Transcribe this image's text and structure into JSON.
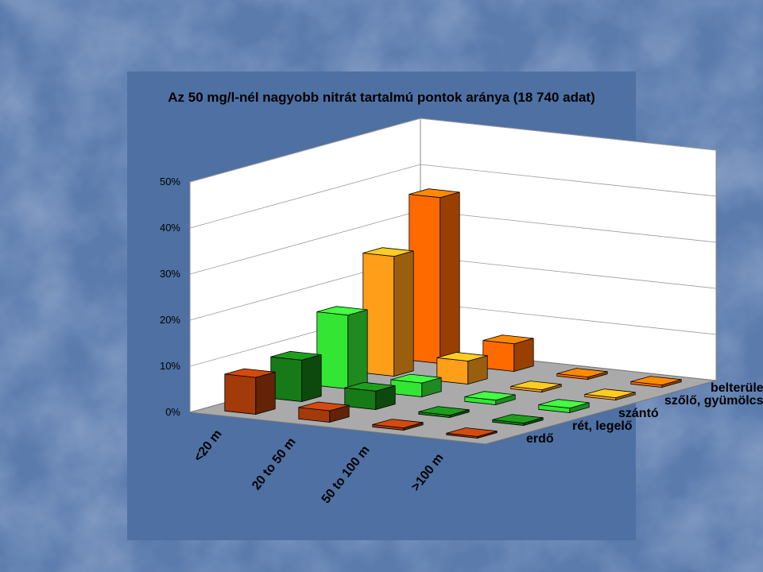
{
  "chart_data": {
    "type": "bar3d",
    "title": "Az 50 mg/l-nél nagyobb nitrát tartalmú pontok aránya (18 740 adat)",
    "categories": [
      "<20 m",
      "20 to 50 m",
      "50 to 100 m",
      ">100 m"
    ],
    "series": [
      {
        "name": "erdő",
        "color": "#a33a0a",
        "values": [
          8,
          2.5,
          0.5,
          0.3
        ]
      },
      {
        "name": "rét, legelő",
        "color": "#167a16",
        "values": [
          9,
          4,
          0.5,
          0.5
        ]
      },
      {
        "name": "szántó",
        "color": "#33e633",
        "values": [
          16,
          3,
          1,
          1
        ]
      },
      {
        "name": "szőlő, gyümölcsös",
        "color": "#ff9e19",
        "values": [
          26,
          5,
          0.5,
          0.5
        ]
      },
      {
        "name": "belterület",
        "color": "#ff6a00",
        "values": [
          36,
          6,
          0.5,
          0.5
        ]
      }
    ],
    "yticks": [
      "0%",
      "10%",
      "20%",
      "30%",
      "40%",
      "50%"
    ],
    "ylim": [
      0,
      50
    ],
    "grid": true
  }
}
